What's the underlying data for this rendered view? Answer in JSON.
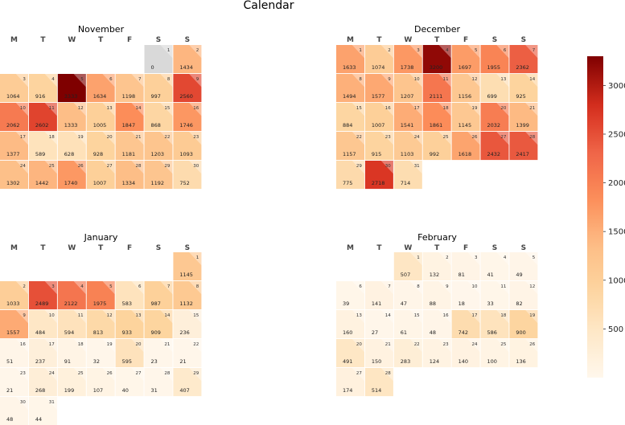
{
  "title": "Calendar",
  "chart_data": {
    "type": "heatmap",
    "colormap": "OrRd",
    "missing_color": "#d9d9d9",
    "weekday_labels": [
      "M",
      "T",
      "W",
      "T",
      "F",
      "S",
      "S"
    ],
    "colorbar": {
      "range": [
        0,
        3300
      ],
      "ticks": [
        500,
        1000,
        1500,
        2000,
        2500,
        3000
      ]
    },
    "months": [
      {
        "name": "November",
        "start_weekday": 6,
        "days": 30,
        "values": [
          null,
          1434,
          1064,
          916,
          3333,
          1634,
          1198,
          997,
          2560,
          2062,
          2602,
          1333,
          1005,
          1847,
          868,
          1746,
          1377,
          589,
          628,
          928,
          1181,
          1203,
          1093,
          1302,
          1442,
          1740,
          1007,
          1334,
          1192,
          752
        ],
        "display": [
          "0",
          "1434",
          "1064",
          "916",
          "3333",
          "1634",
          "1198",
          "997",
          "2560",
          "2062",
          "2602",
          "1333",
          "1005",
          "1847",
          "868",
          "1746",
          "1377",
          "589",
          "628",
          "928",
          "1181",
          "1203",
          "1093",
          "1302",
          "1442",
          "1740",
          "1007",
          "1334",
          "1192",
          "752"
        ]
      },
      {
        "name": "December",
        "start_weekday": 1,
        "days": 31,
        "values": [
          1633,
          1074,
          1738,
          3200,
          1697,
          1955,
          2362,
          1494,
          1577,
          1207,
          2111,
          1156,
          699,
          925,
          884,
          1007,
          1541,
          1861,
          1145,
          2032,
          1399,
          1157,
          915,
          1103,
          992,
          1618,
          2432,
          2417,
          775,
          2718,
          714
        ],
        "display": [
          "1633",
          "1074",
          "1738",
          "3200",
          "1697",
          "1955",
          "2362",
          "1494",
          "1577",
          "1207",
          "2111",
          "1156",
          "699",
          "925",
          "884",
          "1007",
          "1541",
          "1861",
          "1145",
          "2032",
          "1399",
          "1157",
          "915",
          "1103",
          "992",
          "1618",
          "2432",
          "2417",
          "775",
          "2718",
          "714"
        ]
      },
      {
        "name": "January",
        "start_weekday": 7,
        "days": 31,
        "values": [
          1145,
          1033,
          2489,
          2122,
          1975,
          583,
          987,
          1132,
          1557,
          484,
          594,
          813,
          933,
          909,
          236,
          51,
          237,
          91,
          32,
          595,
          23,
          21,
          21,
          268,
          199,
          107,
          40,
          31,
          407,
          48,
          44
        ],
        "display": [
          "1145",
          "1033",
          "2489",
          "2122",
          "1975",
          "583",
          "987",
          "1132",
          "1557",
          "484",
          "594",
          "813",
          "933",
          "909",
          "236",
          "51",
          "237",
          "91",
          "32",
          "595",
          "23",
          "21",
          "21",
          "268",
          "199",
          "107",
          "40",
          "31",
          "407",
          "48",
          "44"
        ]
      },
      {
        "name": "February",
        "start_weekday": 3,
        "days": 28,
        "values": [
          507,
          132,
          81,
          41,
          49,
          39,
          141,
          47,
          88,
          18,
          33,
          82,
          160,
          27,
          61,
          48,
          742,
          586,
          900,
          491,
          150,
          283,
          124,
          140,
          100,
          136,
          174,
          514
        ],
        "display": [
          "507",
          "132",
          "81",
          "41",
          "49",
          "39",
          "141",
          "47",
          "88",
          "18",
          "33",
          "82",
          "160",
          "27",
          "61",
          "48",
          "742",
          "586",
          "900",
          "491",
          "150",
          "283",
          "124",
          "140",
          "100",
          "136",
          "174",
          "514"
        ]
      }
    ]
  }
}
